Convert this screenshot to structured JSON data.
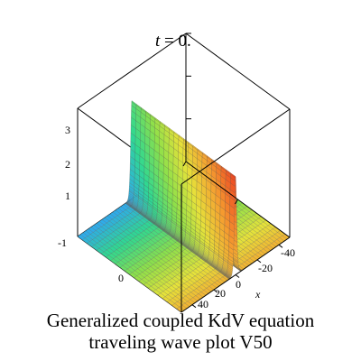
{
  "caption": {
    "line1": "Generalized coupled KdV equation",
    "line2": "traveling wave plot V50"
  },
  "chart_data": {
    "type": "surface3d",
    "title": "t = 0.",
    "title_var": "t",
    "title_rest": " = 0.",
    "xlabel": "x",
    "z_ticks": [
      "1",
      "2",
      "3"
    ],
    "x_ticks": [
      "-40",
      "-20",
      "0",
      "20",
      "40"
    ],
    "y_ticks": [
      "-1",
      "0"
    ],
    "xlim": [
      -50,
      50
    ],
    "ylim": [
      -1,
      1
    ],
    "zlim": [
      0,
      3
    ],
    "wave": {
      "center_x": 0,
      "amplitude": 2.3,
      "width": 1.4,
      "base_level": 0.0,
      "shape": "sech^2 soliton"
    },
    "colormap": [
      "#2fa8f0",
      "#30d890",
      "#8ee04a",
      "#e6e23a",
      "#f5a030",
      "#ee4a22"
    ],
    "grid": true
  }
}
